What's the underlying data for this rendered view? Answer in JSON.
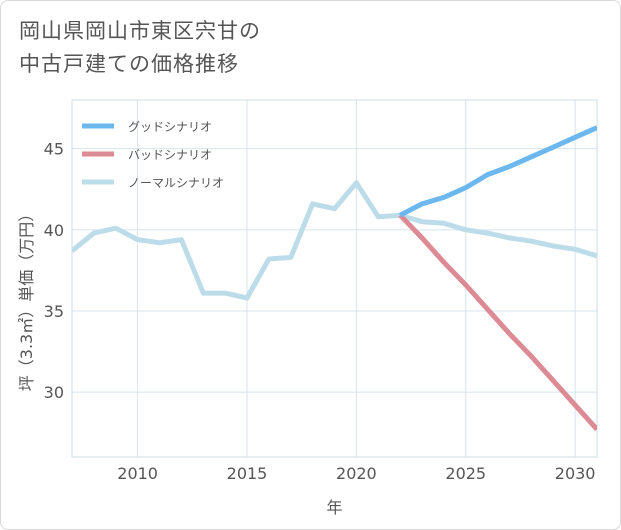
{
  "title_lines": [
    "岡山県岡山市東区宍甘の",
    "中古戸建ての価格推移"
  ],
  "colors": {
    "good": "#6cb8ee",
    "bad": "#dc8a93",
    "normal": "#bcdcea",
    "grid": "#d4e4ee",
    "text": "#555555"
  },
  "chart_data": {
    "type": "line",
    "title": "岡山県岡山市東区宍甘の中古戸建ての価格推移",
    "xlabel": "年",
    "ylabel": "坪（3.3㎡）単価（万円）",
    "xlim": [
      2007,
      2031
    ],
    "ylim": [
      26,
      48
    ],
    "xticks": [
      2010,
      2015,
      2020,
      2025,
      2030
    ],
    "yticks": [
      30,
      35,
      40,
      45
    ],
    "grid": true,
    "legend_position": "top-left",
    "series": [
      {
        "name": "グッドシナリオ",
        "color": "#6cb8ee",
        "x": [
          2022,
          2023,
          2024,
          2025,
          2026,
          2027,
          2028,
          2029,
          2030,
          2031
        ],
        "y": [
          40.9,
          41.6,
          42.0,
          42.6,
          43.4,
          43.9,
          44.5,
          45.1,
          45.7,
          46.3
        ]
      },
      {
        "name": "バッドシナリオ",
        "color": "#dc8a93",
        "x": [
          2022,
          2023,
          2024,
          2025,
          2026,
          2027,
          2028,
          2029,
          2030,
          2031
        ],
        "y": [
          40.9,
          39.5,
          38.0,
          36.6,
          35.1,
          33.6,
          32.2,
          30.7,
          29.2,
          27.7
        ]
      },
      {
        "name": "ノーマルシナリオ",
        "color": "#bcdcea",
        "x": [
          2007,
          2008,
          2009,
          2010,
          2011,
          2012,
          2013,
          2014,
          2015,
          2016,
          2017,
          2018,
          2019,
          2020,
          2021,
          2022,
          2023,
          2024,
          2025,
          2026,
          2027,
          2028,
          2029,
          2030,
          2031
        ],
        "y": [
          38.7,
          39.8,
          40.1,
          39.4,
          39.2,
          39.4,
          36.1,
          36.1,
          35.8,
          38.2,
          38.3,
          41.6,
          41.3,
          42.9,
          40.8,
          40.9,
          40.5,
          40.4,
          40.0,
          39.8,
          39.5,
          39.3,
          39.0,
          38.8,
          38.4
        ]
      }
    ]
  }
}
